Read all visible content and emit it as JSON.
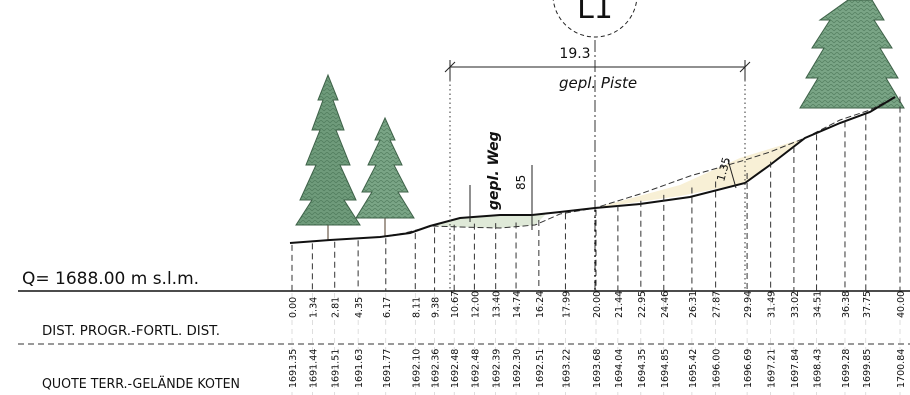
{
  "header": {
    "section_label": "L1",
    "reference_level": "Q= 1688.00 m s.l.m."
  },
  "annotations": {
    "piste_width": "19.3",
    "piste_label": "gepl. Piste",
    "weg_label": "gepl. Weg",
    "weg_width": "85",
    "slope_dim": "1.35"
  },
  "table": {
    "row1_label": "DIST. PROGR.-FORTL. DIST.",
    "row2_label": "QUOTE TERR.-GELÄNDE KOTEN"
  },
  "stations": [
    {
      "dist": "0.00",
      "elev": "1691.35"
    },
    {
      "dist": "1.34",
      "elev": "1691.44"
    },
    {
      "dist": "2.81",
      "elev": "1691.51"
    },
    {
      "dist": "4.35",
      "elev": "1691.63"
    },
    {
      "dist": "6.17",
      "elev": "1691.77"
    },
    {
      "dist": "8.11",
      "elev": "1692.10"
    },
    {
      "dist": "9.38",
      "elev": "1692.36"
    },
    {
      "dist": "10.67",
      "elev": "1692.48"
    },
    {
      "dist": "12.00",
      "elev": "1692.48"
    },
    {
      "dist": "13.40",
      "elev": "1692.39"
    },
    {
      "dist": "14.74",
      "elev": "1692.30"
    },
    {
      "dist": "16.24",
      "elev": "1692.51"
    },
    {
      "dist": "17.99",
      "elev": "1693.22"
    },
    {
      "dist": "20.00",
      "elev": "1693.68"
    },
    {
      "dist": "21.44",
      "elev": "1694.04"
    },
    {
      "dist": "22.95",
      "elev": "1694.35"
    },
    {
      "dist": "24.46",
      "elev": "1694.85"
    },
    {
      "dist": "26.31",
      "elev": "1695.42"
    },
    {
      "dist": "27.87",
      "elev": "1696.00"
    },
    {
      "dist": "29.94",
      "elev": "1696.69"
    },
    {
      "dist": "31.49",
      "elev": "1697.21"
    },
    {
      "dist": "33.02",
      "elev": "1697.84"
    },
    {
      "dist": "34.51",
      "elev": "1698.43"
    },
    {
      "dist": "36.38",
      "elev": "1699.28"
    },
    {
      "dist": "37.75",
      "elev": "1699.85"
    },
    {
      "dist": "40.00",
      "elev": "1700.84"
    }
  ],
  "colors": {
    "tree": "#5f8b6c",
    "fill_area": "#f8f0d6",
    "cut_area": "#dfe9d8",
    "line": "#111111"
  }
}
